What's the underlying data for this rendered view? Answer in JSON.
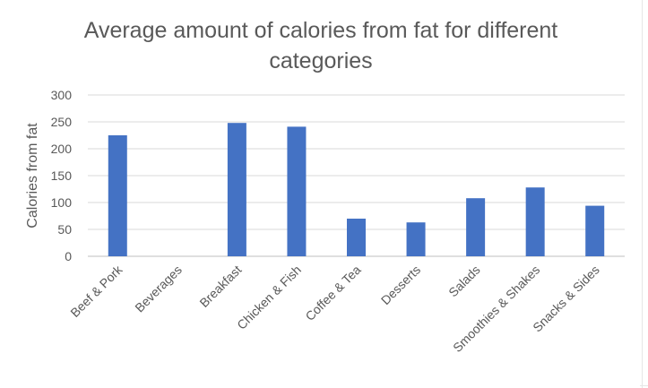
{
  "chart_data": {
    "type": "bar",
    "title_line1": "Average amount of calories from fat for different",
    "title_line2": "categories",
    "xlabel": "",
    "ylabel": "Calories from fat",
    "ylim": [
      0,
      300
    ],
    "yticks": [
      0,
      50,
      100,
      150,
      200,
      250,
      300
    ],
    "ytick_labels": [
      "0",
      "50",
      "100",
      "150",
      "200",
      "250",
      "300"
    ],
    "grid": true,
    "legend": "none",
    "bar_color": "#4472c4",
    "categories": [
      "Beef & Pork",
      "Beverages",
      "Breakfast",
      "Chicken & Fish",
      "Coffee & Tea",
      "Desserts",
      "Salads",
      "Smoothies & Shakes",
      "Snacks & Sides"
    ],
    "values": [
      225,
      0,
      248,
      241,
      70,
      63,
      108,
      128,
      94
    ]
  }
}
